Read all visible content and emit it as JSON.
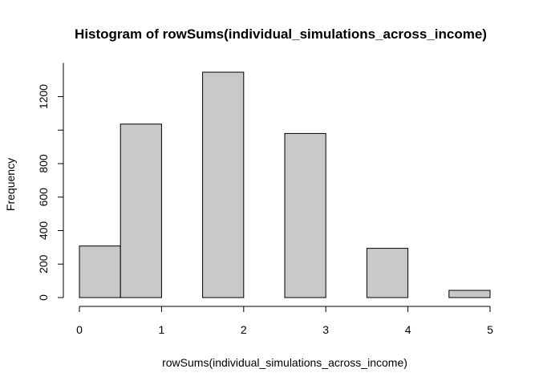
{
  "chart_data": {
    "type": "bar",
    "title": "Histogram of rowSums(individual_simulations_across_income)",
    "xlabel": "rowSums(individual_simulations_across_income)",
    "ylabel": "Frequency",
    "bins": [
      {
        "start": 0.0,
        "end": 0.5,
        "count": 308
      },
      {
        "start": 0.5,
        "end": 1.0,
        "count": 1036
      },
      {
        "start": 1.0,
        "end": 1.5,
        "count": 0
      },
      {
        "start": 1.5,
        "end": 2.0,
        "count": 1346
      },
      {
        "start": 2.0,
        "end": 2.5,
        "count": 0
      },
      {
        "start": 2.5,
        "end": 3.0,
        "count": 980
      },
      {
        "start": 3.0,
        "end": 3.5,
        "count": 0
      },
      {
        "start": 3.5,
        "end": 4.0,
        "count": 294
      },
      {
        "start": 4.0,
        "end": 4.5,
        "count": 0
      },
      {
        "start": 4.5,
        "end": 5.0,
        "count": 43
      }
    ],
    "xlim": [
      0,
      5
    ],
    "ylim": [
      0,
      1400
    ],
    "x_ticks": [
      0,
      1,
      2,
      3,
      4,
      5
    ],
    "y_ticks": [
      0,
      200,
      400,
      600,
      800,
      1000,
      1200
    ],
    "y_tick_labels": [
      "0",
      "200",
      "400",
      "600",
      "800",
      "",
      "1200"
    ],
    "bar_color": "#c9c9c9",
    "grid": false
  }
}
